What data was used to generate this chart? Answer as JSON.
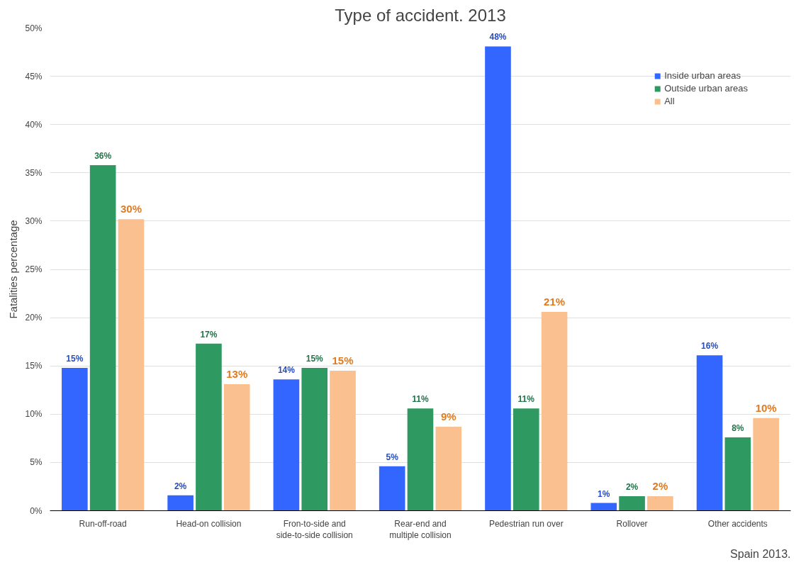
{
  "chart_data": {
    "type": "bar",
    "title": "Type of accident. 2013",
    "ylabel": "Fatalities percentage",
    "categories": [
      "Run-off-road",
      "Head-on collision",
      "Fron-to-side and\nside-to-side collision",
      "Rear-end and\nmultiple collision",
      "Pedestrian run over",
      "Rollover",
      "Other accidents"
    ],
    "series": [
      {
        "name": "Inside urban areas",
        "color": "#3366ff",
        "values": [
          14.8,
          1.6,
          13.6,
          4.6,
          48.1,
          0.8,
          16.1
        ],
        "value_labels": [
          "15%",
          "2%",
          "14%",
          "5%",
          "48%",
          "1%",
          "16%"
        ]
      },
      {
        "name": "Outside urban areas",
        "color": "#2e9a62",
        "values": [
          35.8,
          17.3,
          14.8,
          10.6,
          10.6,
          1.5,
          7.6
        ],
        "value_labels": [
          "36%",
          "17%",
          "15%",
          "11%",
          "11%",
          "2%",
          "8%"
        ]
      },
      {
        "name": "All",
        "color": "#fac090",
        "values": [
          30.2,
          13.1,
          14.5,
          8.7,
          20.6,
          1.5,
          9.6
        ],
        "value_labels": [
          "30%",
          "13%",
          "15%",
          "9%",
          "21%",
          "2%",
          "10%"
        ]
      }
    ],
    "ylim": [
      0,
      50
    ],
    "yticks": [
      {
        "value": 0,
        "label": "0%"
      },
      {
        "value": 5,
        "label": "5%"
      },
      {
        "value": 10,
        "label": "10%"
      },
      {
        "value": 15,
        "label": "15%"
      },
      {
        "value": 20,
        "label": "20%"
      },
      {
        "value": 25,
        "label": "25%"
      },
      {
        "value": 30,
        "label": "30%"
      },
      {
        "value": 35,
        "label": "35%"
      },
      {
        "value": 40,
        "label": "40%"
      },
      {
        "value": 45,
        "label": "45%"
      },
      {
        "value": 50,
        "label": "50%"
      }
    ],
    "grid": "y",
    "legend": "top right",
    "annotations": [
      "Spain 2013."
    ]
  }
}
